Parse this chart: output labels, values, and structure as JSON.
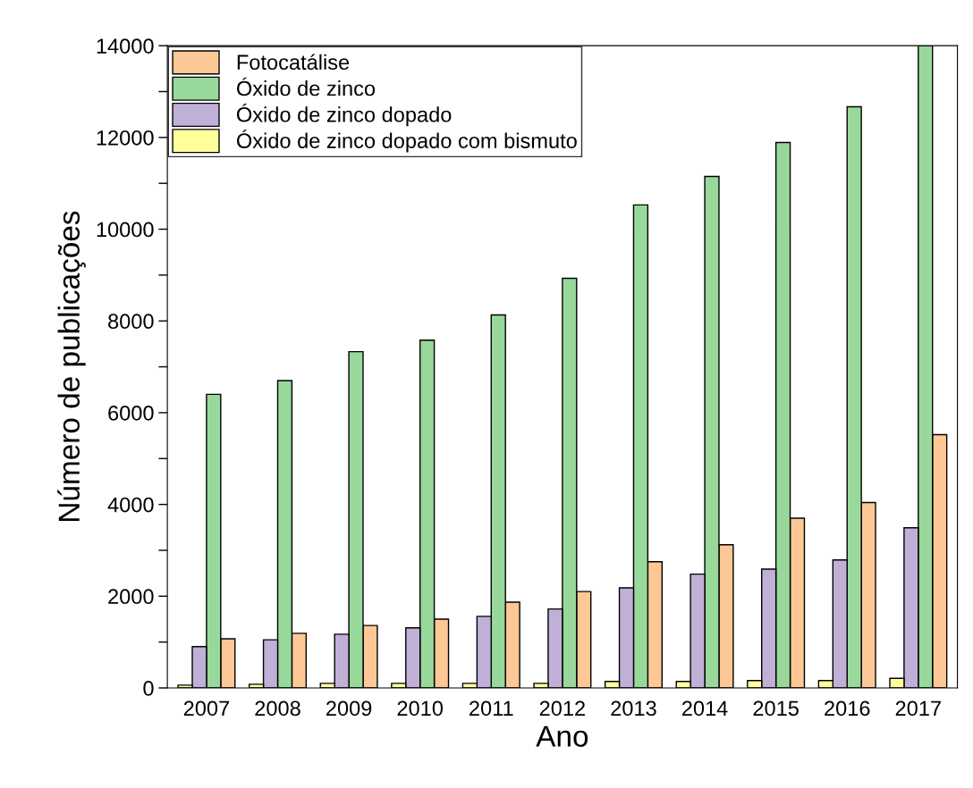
{
  "chart_data": {
    "type": "bar",
    "xlabel": "Ano",
    "ylabel": "Número de publicações",
    "categories": [
      "2007",
      "2008",
      "2009",
      "2010",
      "2011",
      "2012",
      "2013",
      "2014",
      "2015",
      "2016",
      "2017"
    ],
    "series": [
      {
        "name": "Fotocatálise",
        "color": "#fdc896",
        "values": [
          1070,
          1190,
          1360,
          1500,
          1870,
          2100,
          2750,
          3120,
          3700,
          4040,
          5520
        ]
      },
      {
        "name": "Óxido de zinco",
        "color": "#98d89a",
        "values": [
          6400,
          6700,
          7330,
          7580,
          8130,
          8930,
          10530,
          11150,
          11890,
          12670,
          14000
        ]
      },
      {
        "name": "Óxido de zinco dopado",
        "color": "#c0b0d8",
        "values": [
          900,
          1050,
          1170,
          1310,
          1560,
          1720,
          2180,
          2480,
          2590,
          2790,
          3490
        ]
      },
      {
        "name": "Óxido de zinco dopado com bismuto",
        "color": "#ffff9c",
        "values": [
          60,
          80,
          100,
          100,
          100,
          100,
          140,
          140,
          160,
          160,
          210
        ]
      }
    ],
    "ylim": [
      0,
      14000
    ],
    "yticks": [
      0,
      {
        "value": 1000,
        "label": null
      },
      2000,
      {
        "value": 3000,
        "label": null
      },
      4000,
      {
        "value": 5000,
        "label": null
      },
      6000,
      {
        "value": 7000,
        "label": null
      },
      8000,
      {
        "value": 9000,
        "label": null
      },
      10000,
      {
        "value": 11000,
        "label": null
      },
      12000,
      {
        "value": 13000,
        "label": null
      },
      14000
    ],
    "legend": "top left",
    "grid": false
  }
}
